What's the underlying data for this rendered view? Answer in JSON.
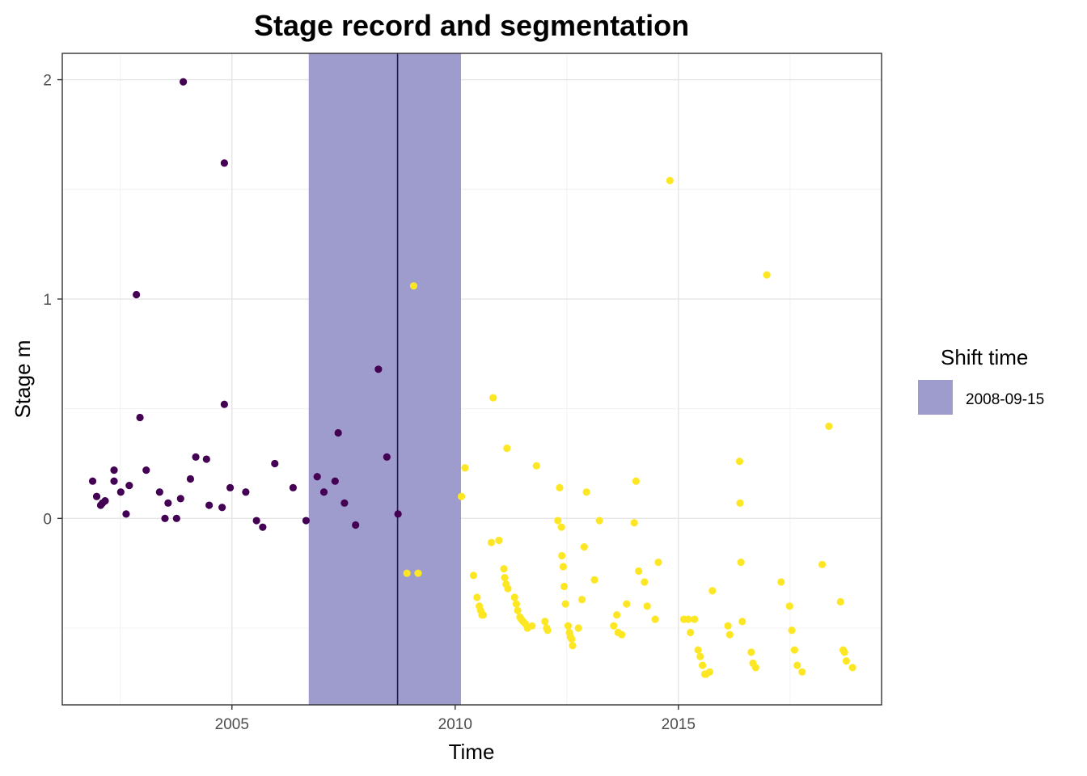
{
  "chart_data": {
    "type": "scatter",
    "title": "Stage record and segmentation",
    "xlabel": "Time",
    "ylabel": "Stage m",
    "x_ticks": [
      "2005",
      "2010",
      "2015"
    ],
    "y_ticks": [
      "0",
      "1",
      "2"
    ],
    "xlim": [
      2001.2,
      2019.55
    ],
    "ylim": [
      -0.85,
      2.12
    ],
    "grid": true,
    "legend": {
      "title": "Shift time",
      "position": "right",
      "entries": [
        {
          "label": "2008-09-15",
          "color": "#9e9bcd"
        }
      ]
    },
    "shift": {
      "date": "2008-09-15",
      "time": 2008.71,
      "interval": [
        2006.72,
        2010.13
      ],
      "interval_color": "#9e9bcd",
      "line_color": "#1c1a4a"
    },
    "series": [
      {
        "color": "#440154",
        "points": [
          [
            2001.88,
            0.17
          ],
          [
            2001.97,
            0.1
          ],
          [
            2002.06,
            0.06
          ],
          [
            2002.1,
            0.07
          ],
          [
            2002.16,
            0.08
          ],
          [
            2002.36,
            0.22
          ],
          [
            2002.36,
            0.17
          ],
          [
            2002.51,
            0.12
          ],
          [
            2002.63,
            0.02
          ],
          [
            2002.7,
            0.15
          ],
          [
            2002.86,
            1.02
          ],
          [
            2002.94,
            0.46
          ],
          [
            2003.08,
            0.22
          ],
          [
            2003.38,
            0.12
          ],
          [
            2003.5,
            0.0
          ],
          [
            2003.57,
            0.07
          ],
          [
            2003.76,
            0.0
          ],
          [
            2003.85,
            0.09
          ],
          [
            2003.91,
            1.99
          ],
          [
            2004.07,
            0.18
          ],
          [
            2004.19,
            0.28
          ],
          [
            2004.43,
            0.27
          ],
          [
            2004.49,
            0.06
          ],
          [
            2004.78,
            0.05
          ],
          [
            2004.83,
            0.52
          ],
          [
            2004.83,
            1.62
          ],
          [
            2004.96,
            0.14
          ],
          [
            2005.31,
            0.12
          ],
          [
            2005.55,
            -0.01
          ],
          [
            2005.69,
            -0.04
          ],
          [
            2005.96,
            0.25
          ],
          [
            2006.37,
            0.14
          ],
          [
            2006.66,
            -0.01
          ],
          [
            2006.91,
            0.19
          ],
          [
            2007.06,
            0.12
          ],
          [
            2007.31,
            0.17
          ],
          [
            2007.38,
            0.39
          ],
          [
            2007.52,
            0.07
          ],
          [
            2007.77,
            -0.03
          ],
          [
            2008.28,
            0.68
          ],
          [
            2008.47,
            0.28
          ],
          [
            2008.72,
            0.02
          ]
        ]
      },
      {
        "color": "#fde725",
        "points": [
          [
            2008.92,
            -0.25
          ],
          [
            2009.07,
            1.06
          ],
          [
            2009.17,
            -0.25
          ],
          [
            2010.14,
            0.1
          ],
          [
            2010.22,
            0.23
          ],
          [
            2010.41,
            -0.26
          ],
          [
            2010.49,
            -0.36
          ],
          [
            2010.54,
            -0.4
          ],
          [
            2010.57,
            -0.42
          ],
          [
            2010.6,
            -0.44
          ],
          [
            2010.63,
            -0.44
          ],
          [
            2010.81,
            -0.11
          ],
          [
            2010.85,
            0.55
          ],
          [
            2010.98,
            -0.1
          ],
          [
            2011.09,
            -0.23
          ],
          [
            2011.11,
            -0.27
          ],
          [
            2011.14,
            -0.3
          ],
          [
            2011.16,
            0.32
          ],
          [
            2011.18,
            -0.32
          ],
          [
            2011.33,
            -0.36
          ],
          [
            2011.37,
            -0.39
          ],
          [
            2011.4,
            -0.42
          ],
          [
            2011.45,
            -0.45
          ],
          [
            2011.48,
            -0.46
          ],
          [
            2011.52,
            -0.47
          ],
          [
            2011.57,
            -0.48
          ],
          [
            2011.62,
            -0.5
          ],
          [
            2011.72,
            -0.49
          ],
          [
            2011.82,
            0.24
          ],
          [
            2012.01,
            -0.47
          ],
          [
            2012.05,
            -0.5
          ],
          [
            2012.07,
            -0.51
          ],
          [
            2012.3,
            -0.01
          ],
          [
            2012.34,
            0.14
          ],
          [
            2012.38,
            -0.04
          ],
          [
            2012.39,
            -0.17
          ],
          [
            2012.42,
            -0.22
          ],
          [
            2012.44,
            -0.31
          ],
          [
            2012.47,
            -0.39
          ],
          [
            2012.53,
            -0.49
          ],
          [
            2012.56,
            -0.52
          ],
          [
            2012.58,
            -0.54
          ],
          [
            2012.61,
            -0.55
          ],
          [
            2012.63,
            -0.58
          ],
          [
            2012.76,
            -0.5
          ],
          [
            2012.84,
            -0.37
          ],
          [
            2012.89,
            -0.13
          ],
          [
            2012.94,
            0.12
          ],
          [
            2013.12,
            -0.28
          ],
          [
            2013.23,
            -0.01
          ],
          [
            2013.55,
            -0.49
          ],
          [
            2013.62,
            -0.44
          ],
          [
            2013.65,
            -0.52
          ],
          [
            2013.73,
            -0.53
          ],
          [
            2013.84,
            -0.39
          ],
          [
            2014.01,
            -0.02
          ],
          [
            2014.05,
            0.17
          ],
          [
            2014.11,
            -0.24
          ],
          [
            2014.24,
            -0.29
          ],
          [
            2014.3,
            -0.4
          ],
          [
            2014.48,
            -0.46
          ],
          [
            2014.55,
            -0.2
          ],
          [
            2014.81,
            1.54
          ],
          [
            2015.12,
            -0.46
          ],
          [
            2015.22,
            -0.46
          ],
          [
            2015.27,
            -0.52
          ],
          [
            2015.36,
            -0.46
          ],
          [
            2015.44,
            -0.6
          ],
          [
            2015.49,
            -0.63
          ],
          [
            2015.54,
            -0.67
          ],
          [
            2015.59,
            -0.71
          ],
          [
            2015.62,
            -0.71
          ],
          [
            2015.7,
            -0.7
          ],
          [
            2015.76,
            -0.33
          ],
          [
            2016.11,
            -0.49
          ],
          [
            2016.15,
            -0.53
          ],
          [
            2016.37,
            0.26
          ],
          [
            2016.38,
            0.07
          ],
          [
            2016.4,
            -0.2
          ],
          [
            2016.43,
            -0.47
          ],
          [
            2016.63,
            -0.61
          ],
          [
            2016.67,
            -0.66
          ],
          [
            2016.73,
            -0.68
          ],
          [
            2016.98,
            1.11
          ],
          [
            2017.3,
            -0.29
          ],
          [
            2017.49,
            -0.4
          ],
          [
            2017.54,
            -0.51
          ],
          [
            2017.6,
            -0.6
          ],
          [
            2017.66,
            -0.67
          ],
          [
            2017.77,
            -0.7
          ],
          [
            2018.22,
            -0.21
          ],
          [
            2018.37,
            0.42
          ],
          [
            2018.63,
            -0.38
          ],
          [
            2018.69,
            -0.6
          ],
          [
            2018.72,
            -0.61
          ],
          [
            2018.76,
            -0.65
          ],
          [
            2018.9,
            -0.68
          ]
        ]
      }
    ]
  }
}
